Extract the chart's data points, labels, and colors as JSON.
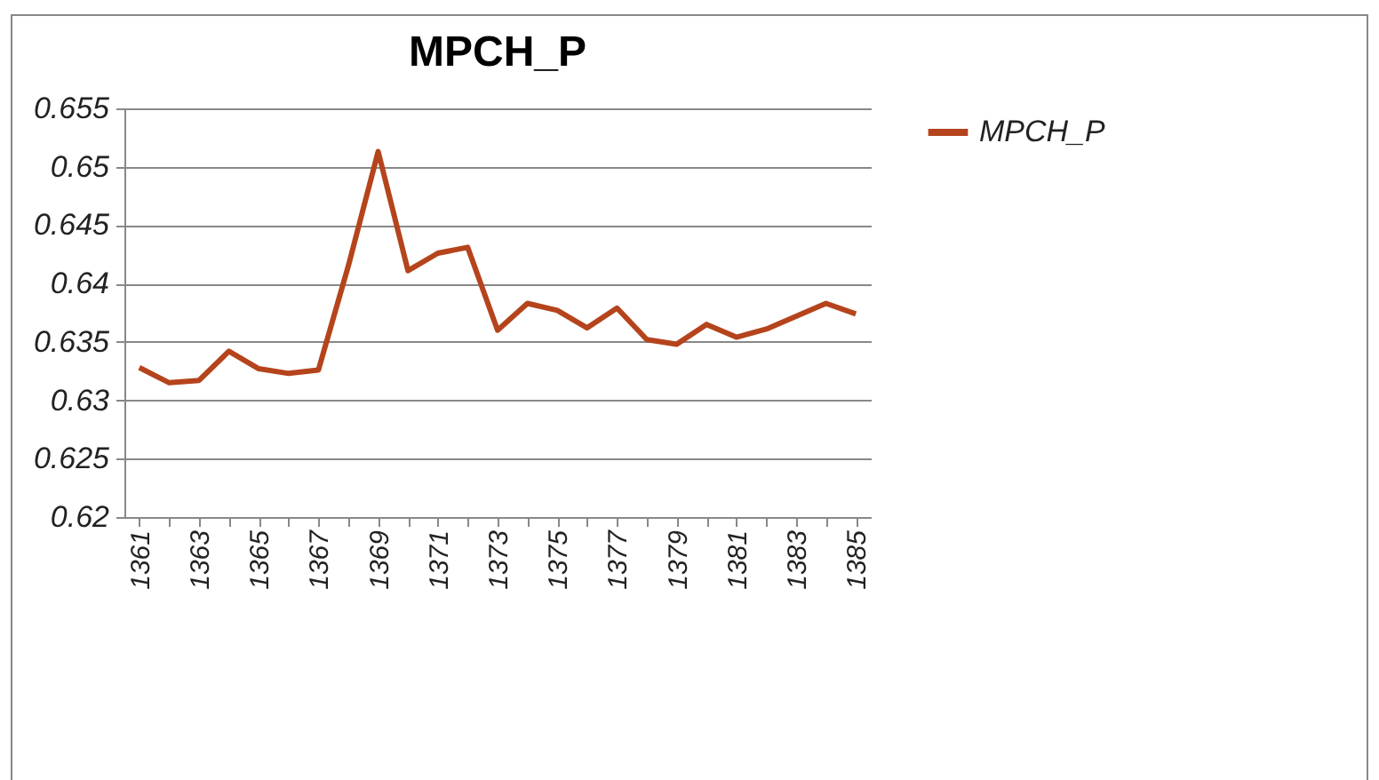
{
  "chart_data": {
    "type": "line",
    "title": "MPCH_P",
    "categories": [
      "1361",
      null,
      "1363",
      null,
      "1365",
      null,
      "1367",
      null,
      "1369",
      null,
      "1371",
      null,
      "1373",
      null,
      "1375",
      null,
      "1377",
      null,
      "1379",
      null,
      "1381",
      null,
      "1383",
      null,
      "1385"
    ],
    "series": [
      {
        "name": "MPCH_P",
        "color": "#b5441c",
        "values": [
          0.6328,
          0.6315,
          0.6317,
          0.6342,
          0.6327,
          0.6323,
          0.6326,
          0.6415,
          0.6513,
          0.6411,
          0.6426,
          0.6431,
          0.636,
          0.6383,
          0.6377,
          0.6362,
          0.6379,
          0.6352,
          0.6348,
          0.6365,
          0.6354,
          0.6361,
          0.6372,
          0.6383,
          0.6374
        ]
      }
    ],
    "ylim": [
      0.62,
      0.655
    ],
    "yticks": [
      0.62,
      0.625,
      0.63,
      0.635,
      0.64,
      0.645,
      0.65,
      0.655
    ],
    "grid": "y",
    "legend": "right",
    "marker": "none",
    "line_style": "solid"
  }
}
